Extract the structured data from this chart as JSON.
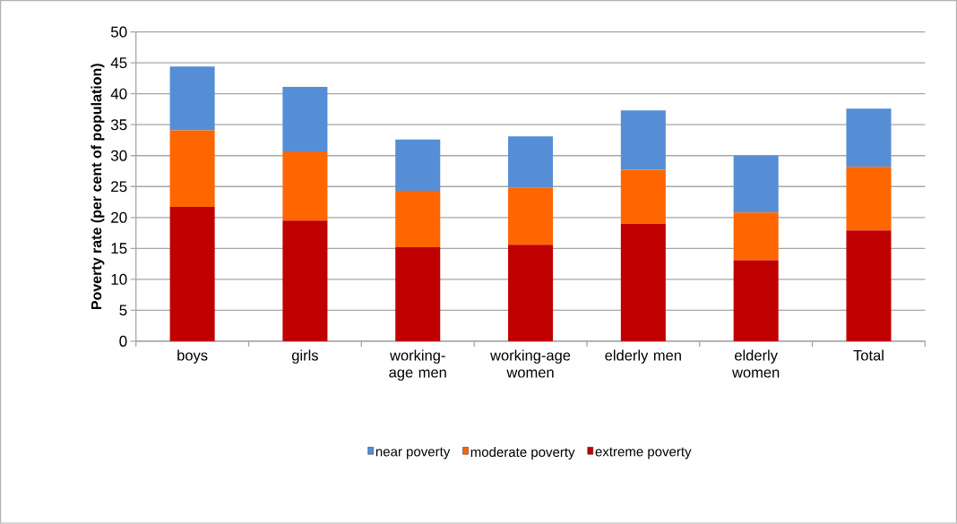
{
  "chart_data": {
    "type": "bar",
    "stacked": true,
    "ylabel": "Poverty rate (per cent of population)",
    "categories": [
      "boys",
      "girls",
      "working-age men",
      "working-age women",
      "elderly men",
      "elderly women",
      "Total"
    ],
    "series": [
      {
        "name": "extreme poverty",
        "color": "#c00000",
        "values": [
          21.7,
          19.5,
          15.2,
          15.6,
          19.0,
          13.1,
          17.9
        ]
      },
      {
        "name": "moderate poverty",
        "color": "#ff6600",
        "values": [
          12.4,
          11.2,
          9.1,
          9.2,
          8.7,
          7.7,
          10.3
        ]
      },
      {
        "name": "near poverty",
        "color": "#558ed5",
        "values": [
          10.3,
          10.4,
          8.3,
          8.3,
          9.6,
          9.2,
          9.4
        ]
      }
    ],
    "ylim": [
      0,
      50
    ],
    "yticks": [
      0,
      5,
      10,
      15,
      20,
      25,
      30,
      35,
      40,
      45,
      50
    ],
    "grid": "y",
    "legend": "bottom"
  }
}
